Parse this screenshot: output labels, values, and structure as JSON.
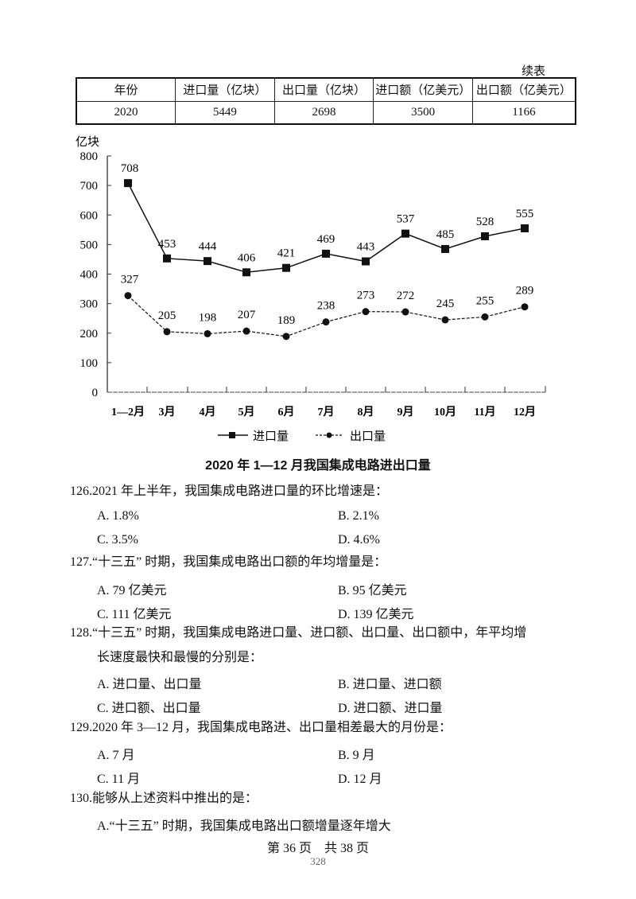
{
  "table": {
    "continued_label": "续表",
    "headers": [
      "年份",
      "进口量（亿块）",
      "出口量（亿块）",
      "进口额（亿美元）",
      "出口额（亿美元）"
    ],
    "rows": [
      [
        "2020",
        "5449",
        "2698",
        "3500",
        "1166"
      ]
    ]
  },
  "chart": {
    "y_unit": "亿块",
    "y_ticks": [
      "0",
      "100",
      "200",
      "300",
      "400",
      "500",
      "600",
      "700",
      "800"
    ],
    "title": "2020 年 1—12 月我国集成电路进出口量",
    "legend": {
      "import": "进口量",
      "export": "出口量"
    }
  },
  "chart_data": {
    "type": "line",
    "title": "2020 年 1—12 月我国集成电路进出口量",
    "xlabel": "",
    "ylabel": "亿块",
    "ylim": [
      0,
      800
    ],
    "categories": [
      "1—2月",
      "3月",
      "4月",
      "5月",
      "6月",
      "7月",
      "8月",
      "9月",
      "10月",
      "11月",
      "12月"
    ],
    "series": [
      {
        "name": "进口量",
        "style": "solid-square",
        "values": [
          708,
          453,
          444,
          406,
          421,
          469,
          443,
          537,
          485,
          528,
          555
        ]
      },
      {
        "name": "出口量",
        "style": "dashed-circle",
        "values": [
          327,
          205,
          198,
          207,
          189,
          238,
          273,
          272,
          245,
          255,
          289
        ]
      }
    ],
    "legend_position": "bottom",
    "grid": false
  },
  "questions": [
    {
      "lines": [
        "126.2021 年上半年，我国集成电路进口量的环比增速是："
      ],
      "options": [
        "A. 1.8%",
        "B. 2.1%",
        "C. 3.5%",
        "D. 4.6%"
      ]
    },
    {
      "lines": [
        "127.“十三五” 时期，我国集成电路出口额的年均增量是："
      ],
      "options": [
        "A. 79 亿美元",
        "B. 95 亿美元",
        "C. 111 亿美元",
        "D. 139 亿美元"
      ]
    },
    {
      "lines": [
        "128.“十三五” 时期，我国集成电路进口量、进口额、出口量、出口额中，年平均增",
        "长速度最快和最慢的分别是："
      ],
      "options": [
        "A. 进口量、出口量",
        "B. 进口量、进口额",
        "C. 进口额、出口量",
        "D. 进口额、进口量"
      ]
    },
    {
      "lines": [
        "129.2020 年 3—12 月，我国集成电路进、出口量相差最大的月份是："
      ],
      "options": [
        "A. 7 月",
        "B. 9 月",
        "C. 11 月",
        "D. 12 月"
      ]
    },
    {
      "lines": [
        "130.能够从上述资料中推出的是："
      ],
      "options": [
        "A.“十三五” 时期，我国集成电路出口额增量逐年增大"
      ]
    }
  ],
  "footer": {
    "page_text": "第 36 页　共 38 页",
    "page_number": "328"
  }
}
